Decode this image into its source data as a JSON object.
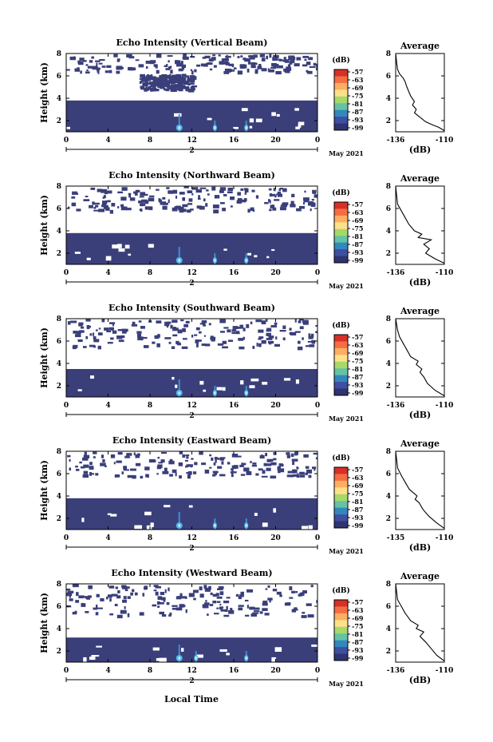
{
  "figure": {
    "x_common_label": "Local Time",
    "colors": {
      "echo_fill": "#3a3f7a",
      "plot_frame": "#000000",
      "background": "#ffffff"
    }
  },
  "chart_data": [
    {
      "type": "heatmap",
      "title": "Echo Intensity (Vertical Beam)",
      "ylabel": "Height (km)",
      "x_ticks": [
        "0",
        "4",
        "8",
        "12",
        "16",
        "20",
        "0"
      ],
      "x_range": [
        0,
        24
      ],
      "day_label": "2",
      "date_label": "May 2021",
      "y_ticks": [
        "2",
        "4",
        "6",
        "8"
      ],
      "y_range": [
        1,
        8
      ],
      "colorbar": {
        "unit": "(dB)",
        "ticks": [
          "-57",
          "-63",
          "-69",
          "-75",
          "-81",
          "-87",
          "-93",
          "-99"
        ]
      },
      "lower_layer_top_km": 3.8,
      "enhanced_echo_hours": [
        10.8,
        14.2,
        17.2
      ],
      "sparse_regions": [
        [
          0,
          24,
          6.4,
          8.0
        ],
        [
          7,
          12,
          4.8,
          6.2
        ]
      ],
      "average": {
        "title": "Average",
        "xlabel": "(dB)",
        "x_ticks": [
          "-136",
          "-110"
        ],
        "x_range": [
          -136,
          -110
        ],
        "y_ticks": [
          "2",
          "4",
          "6",
          "8"
        ],
        "y_range": [
          1,
          8
        ],
        "profile": [
          [
            -110,
            1.1
          ],
          [
            -113,
            1.4
          ],
          [
            -116,
            1.6
          ],
          [
            -120,
            1.9
          ],
          [
            -123,
            2.3
          ],
          [
            -126,
            2.7
          ],
          [
            -125,
            3.0
          ],
          [
            -127,
            3.4
          ],
          [
            -126,
            3.7
          ],
          [
            -128,
            4.2
          ],
          [
            -129,
            4.6
          ],
          [
            -130,
            5.0
          ],
          [
            -131,
            5.5
          ],
          [
            -132,
            5.8
          ],
          [
            -134,
            6.2
          ],
          [
            -135,
            6.6
          ],
          [
            -135.5,
            7.2
          ],
          [
            -136,
            8.0
          ]
        ]
      }
    },
    {
      "type": "heatmap",
      "title": "Echo Intensity (Northward Beam)",
      "ylabel": "Height (km)",
      "x_ticks": [
        "0",
        "4",
        "8",
        "12",
        "16",
        "20",
        "0"
      ],
      "x_range": [
        0,
        24
      ],
      "day_label": "2",
      "date_label": "May 2021",
      "y_ticks": [
        "2",
        "4",
        "6",
        "8"
      ],
      "y_range": [
        1,
        8
      ],
      "colorbar": {
        "unit": "(dB)",
        "ticks": [
          "-57",
          "-63",
          "-69",
          "-75",
          "-81",
          "-87",
          "-93",
          "-99"
        ]
      },
      "lower_layer_top_km": 3.8,
      "enhanced_echo_hours": [
        10.8,
        14.2,
        17.2
      ],
      "sparse_regions": [
        [
          0,
          24,
          5.8,
          8.0
        ]
      ],
      "average": {
        "title": "Average",
        "xlabel": "(dB)",
        "x_ticks": [
          "-136",
          "-110"
        ],
        "x_range": [
          -136,
          -110
        ],
        "y_ticks": [
          "2",
          "4",
          "6",
          "8"
        ],
        "y_range": [
          1,
          8
        ],
        "profile": [
          [
            -110,
            1.1
          ],
          [
            -115,
            1.5
          ],
          [
            -120,
            2.0
          ],
          [
            -118,
            2.4
          ],
          [
            -121,
            2.8
          ],
          [
            -117,
            3.2
          ],
          [
            -124,
            3.4
          ],
          [
            -122,
            3.7
          ],
          [
            -126,
            4.0
          ],
          [
            -129,
            4.6
          ],
          [
            -131,
            5.2
          ],
          [
            -133,
            5.8
          ],
          [
            -135,
            6.4
          ],
          [
            -136,
            8.0
          ]
        ]
      }
    },
    {
      "type": "heatmap",
      "title": "Echo Intensity (Southward Beam)",
      "ylabel": "Height (km)",
      "x_ticks": [
        "0",
        "4",
        "8",
        "12",
        "16",
        "20",
        "0"
      ],
      "x_range": [
        0,
        24
      ],
      "day_label": "2",
      "date_label": "May 2021",
      "y_ticks": [
        "2",
        "4",
        "6",
        "8"
      ],
      "y_range": [
        1,
        8
      ],
      "colorbar": {
        "unit": "(dB)",
        "ticks": [
          "-57",
          "-63",
          "-69",
          "-75",
          "-81",
          "-87",
          "-93",
          "-99"
        ]
      },
      "lower_layer_top_km": 3.5,
      "enhanced_echo_hours": [
        10.8,
        14.2,
        17.2
      ],
      "sparse_regions": [
        [
          0,
          24,
          5.5,
          8.0
        ]
      ],
      "average": {
        "title": "Average",
        "xlabel": "(dB)",
        "x_ticks": [
          "-136",
          "-110"
        ],
        "x_range": [
          -136,
          -110
        ],
        "y_ticks": [
          "2",
          "4",
          "6",
          "8"
        ],
        "y_range": [
          1,
          8
        ],
        "profile": [
          [
            -110,
            1.1
          ],
          [
            -115,
            1.6
          ],
          [
            -119,
            2.2
          ],
          [
            -121,
            2.8
          ],
          [
            -123,
            3.2
          ],
          [
            -122,
            3.5
          ],
          [
            -125,
            3.9
          ],
          [
            -124,
            4.2
          ],
          [
            -128,
            4.6
          ],
          [
            -130,
            5.2
          ],
          [
            -132,
            5.8
          ],
          [
            -134,
            6.4
          ],
          [
            -135,
            7.0
          ],
          [
            -136,
            8.0
          ]
        ]
      }
    },
    {
      "type": "heatmap",
      "title": "Echo Intensity (Eastward Beam)",
      "ylabel": "Height (km)",
      "x_ticks": [
        "0",
        "4",
        "8",
        "12",
        "16",
        "20",
        "0"
      ],
      "x_range": [
        0,
        24
      ],
      "day_label": "2",
      "date_label": "May 2021",
      "y_ticks": [
        "2",
        "4",
        "6",
        "8"
      ],
      "y_range": [
        1,
        8
      ],
      "colorbar": {
        "unit": "(dB)",
        "ticks": [
          "-57",
          "-63",
          "-69",
          "-75",
          "-81",
          "-87",
          "-93",
          "-99"
        ]
      },
      "lower_layer_top_km": 3.8,
      "enhanced_echo_hours": [
        10.8,
        14.2,
        17.2
      ],
      "sparse_regions": [
        [
          0,
          24,
          5.8,
          8.0
        ]
      ],
      "average": {
        "title": "Average",
        "xlabel": "(dB)",
        "x_ticks": [
          "-135",
          "-110"
        ],
        "x_range": [
          -135,
          -110
        ],
        "y_ticks": [
          "2",
          "4",
          "6",
          "8"
        ],
        "y_range": [
          1,
          8
        ],
        "profile": [
          [
            -110,
            1.1
          ],
          [
            -114,
            1.6
          ],
          [
            -118,
            2.2
          ],
          [
            -121,
            2.8
          ],
          [
            -123,
            3.4
          ],
          [
            -125,
            3.7
          ],
          [
            -124,
            4.0
          ],
          [
            -128,
            4.6
          ],
          [
            -130,
            5.2
          ],
          [
            -132,
            5.8
          ],
          [
            -134,
            6.5
          ],
          [
            -135,
            8.0
          ]
        ]
      }
    },
    {
      "type": "heatmap",
      "title": "Echo Intensity (Westward Beam)",
      "ylabel": "Height (km)",
      "x_ticks": [
        "0",
        "4",
        "8",
        "12",
        "16",
        "20",
        "0"
      ],
      "x_range": [
        0,
        24
      ],
      "day_label": "2",
      "date_label": "May 2021",
      "y_ticks": [
        "2",
        "4",
        "6",
        "8"
      ],
      "y_range": [
        1,
        8
      ],
      "colorbar": {
        "unit": "(dB)",
        "ticks": [
          "-57",
          "-63",
          "-69",
          "-75",
          "-81",
          "-87",
          "-93",
          "-99"
        ]
      },
      "lower_layer_top_km": 3.2,
      "enhanced_echo_hours": [
        10.8,
        12.4,
        17.2
      ],
      "sparse_regions": [
        [
          0,
          24,
          5.2,
          8.0
        ]
      ],
      "average": {
        "title": "Average",
        "xlabel": "(dB)",
        "x_ticks": [
          "-136",
          "-110"
        ],
        "x_range": [
          -136,
          -110
        ],
        "y_ticks": [
          "2",
          "4",
          "6",
          "8"
        ],
        "y_range": [
          1,
          8
        ],
        "profile": [
          [
            -110,
            1.1
          ],
          [
            -114,
            1.6
          ],
          [
            -117,
            2.2
          ],
          [
            -120,
            2.8
          ],
          [
            -123,
            3.3
          ],
          [
            -121,
            3.7
          ],
          [
            -125,
            4.0
          ],
          [
            -124,
            4.3
          ],
          [
            -128,
            4.7
          ],
          [
            -131,
            5.4
          ],
          [
            -133,
            6.0
          ],
          [
            -135,
            6.6
          ],
          [
            -136,
            8.0
          ]
        ]
      }
    }
  ]
}
